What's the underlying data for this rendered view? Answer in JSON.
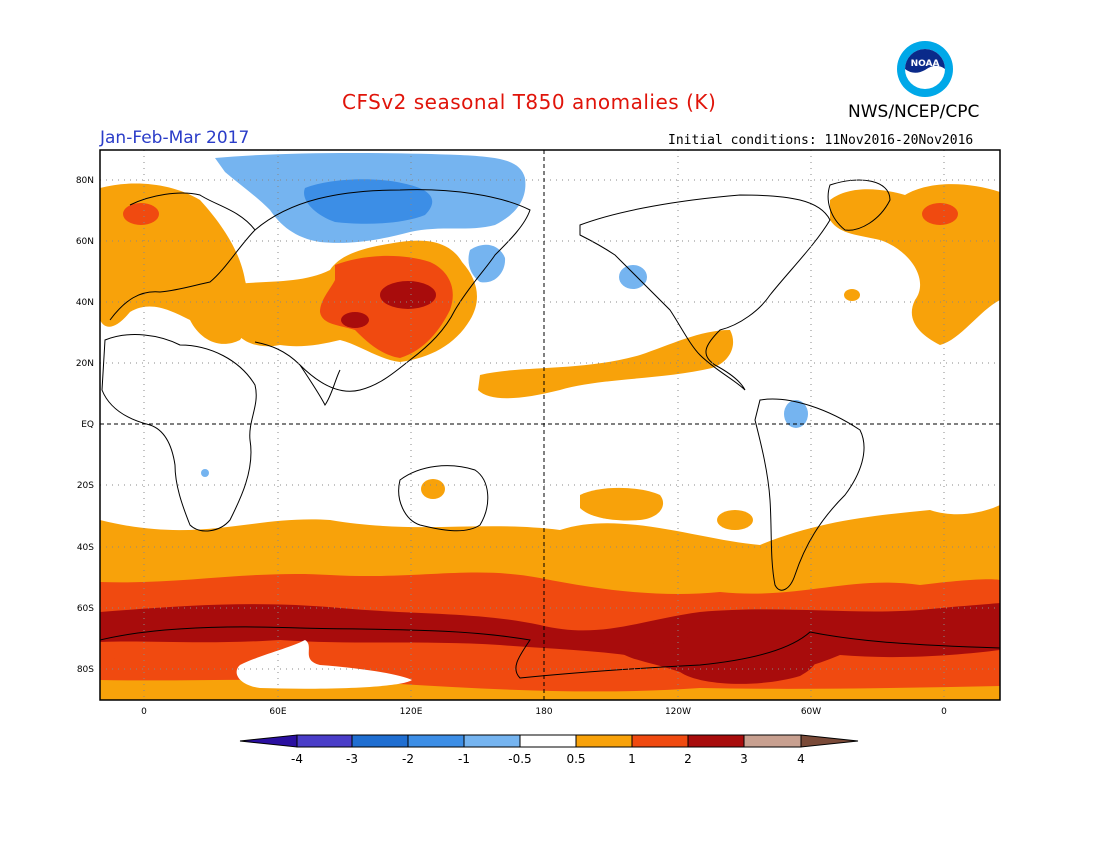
{
  "header": {
    "title": "CFSv2 seasonal T850 anomalies (K)",
    "org": "NWS/NCEP/CPC",
    "period": "Jan-Feb-Mar 2017",
    "initial_conditions": "Initial conditions: 11Nov2016-20Nov2016",
    "logo_text": "NOAA"
  },
  "map": {
    "lat_labels": [
      "80N",
      "60N",
      "40N",
      "20N",
      "EQ",
      "20S",
      "40S",
      "60S",
      "80S"
    ],
    "lon_labels": [
      "0",
      "60E",
      "120E",
      "180",
      "120W",
      "60W",
      "0"
    ]
  },
  "colorbar": {
    "ticks": [
      "-4",
      "-3",
      "-2",
      "-1",
      "-0.5",
      "0.5",
      "1",
      "2",
      "3",
      "4"
    ],
    "colors": [
      "#2a0fa0",
      "#4a3dc8",
      "#1f6ed1",
      "#3c8ee6",
      "#75b4f0",
      "#ffffff",
      "#f8a20a",
      "#f04a10",
      "#a80c0c",
      "#c8a090",
      "#7a4a38"
    ]
  },
  "colors": {
    "warm1": "#f8a20a",
    "warm2": "#f04a10",
    "warm3": "#a80c0c",
    "cool1": "#75b4f0",
    "cool2": "#3c8ee6",
    "land_outline": "#000000"
  }
}
